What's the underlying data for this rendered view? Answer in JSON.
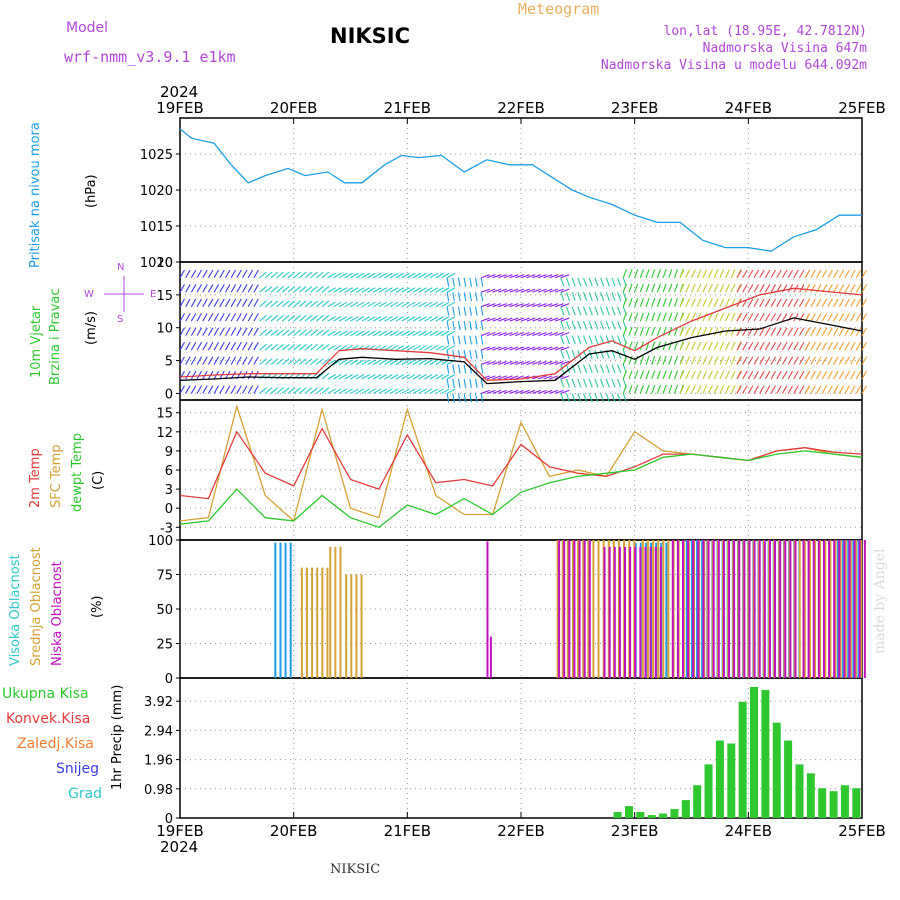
{
  "header": {
    "model_label": "Model",
    "model_name": "wrf-nmm_v3.9.1  e1km",
    "station": "NIKSIC",
    "product": "Meteogram",
    "coords": "lon,lat (18.95E, 42.7812N)",
    "elevation": "Nadmorska Visina 647m",
    "model_elevation": "Nadmorska Visina u modelu 644.092m",
    "year": "2024",
    "footer_station": "NIKSIC",
    "credit": "made by Angel"
  },
  "colors": {
    "pressure": "#1e9ee6",
    "t2m": "#e23c3c",
    "sfc": "#d4a235",
    "dewpt": "#2ec82e",
    "high_cloud": "#1e9ee6",
    "mid_cloud": "#d4a235",
    "low_cloud": "#c010c0",
    "precip_total": "#2ec82e",
    "precip_conv": "#e23c3c",
    "precip_frozen": "#f07f2e",
    "snow": "#3c3ce6",
    "grad": "#2ec8c8",
    "header_purple": "#b048d8",
    "meteogram_orange": "#e8b060"
  },
  "chart_data": [
    {
      "type": "line",
      "panel": "pressure",
      "ylabel": "(hPa)",
      "side_labels": [
        "Pritisak na nivou mora"
      ],
      "ylim": [
        1010,
        1030
      ],
      "yticks": [
        "1010",
        "1015",
        "1020",
        "1025"
      ],
      "x_day": [
        0,
        0.1,
        0.3,
        0.45,
        0.6,
        0.75,
        0.95,
        1.1,
        1.3,
        1.45,
        1.6,
        1.8,
        1.95,
        2.1,
        2.3,
        2.5,
        2.7,
        2.9,
        3.1,
        3.3,
        3.45,
        3.6,
        3.8,
        4.0,
        4.2,
        4.4,
        4.6,
        4.8,
        5.0,
        5.2,
        5.4,
        5.6,
        5.8,
        6.0
      ],
      "series": [
        {
          "values": [
            1028.5,
            1027.2,
            1026.5,
            1023.5,
            1021,
            1022,
            1023,
            1022,
            1022.5,
            1021,
            1021,
            1023.5,
            1024.8,
            1024.5,
            1024.8,
            1022.5,
            1024.2,
            1023.5,
            1023.5,
            1021.5,
            1020,
            1019,
            1018,
            1016.5,
            1015.5,
            1015.5,
            1013,
            1012,
            1012,
            1011.5,
            1013.5,
            1014.5,
            1016.5,
            1016.5
          ]
        }
      ]
    },
    {
      "type": "line",
      "panel": "wind",
      "ylabel": "(m/s)",
      "side_labels": [
        "10m Vjetar",
        "Brzina i Pravac"
      ],
      "compass": [
        "N",
        "W",
        "E",
        "S"
      ],
      "ylim": [
        -1,
        20
      ],
      "yticks": [
        "0",
        "5",
        "10",
        "15",
        "20"
      ],
      "x_day": [
        0,
        0.3,
        0.6,
        0.9,
        1.2,
        1.4,
        1.6,
        1.9,
        2.2,
        2.5,
        2.7,
        3.0,
        3.3,
        3.6,
        3.8,
        4.0,
        4.2,
        4.5,
        4.8,
        5.1,
        5.4,
        5.7,
        6.0
      ],
      "series": [
        {
          "name": "speed",
          "values": [
            2,
            2.2,
            2.5,
            2.4,
            2.4,
            5.2,
            5.5,
            5.2,
            5.3,
            4.8,
            1.5,
            1.8,
            2,
            6,
            6.5,
            5.2,
            7,
            8.5,
            9.5,
            9.8,
            11.5,
            10.5,
            9.5
          ]
        },
        {
          "name": "gust",
          "values": [
            2.5,
            2.8,
            3,
            3,
            3,
            6.5,
            6.8,
            6.5,
            6.2,
            5.5,
            2,
            2.2,
            3,
            7,
            8,
            6.5,
            8.5,
            11,
            13,
            15,
            16,
            15.5,
            15
          ]
        }
      ]
    },
    {
      "type": "line",
      "panel": "temperature",
      "ylabel": "(C)",
      "side_labels": [
        "2m Temp",
        "SFC Temp",
        "dewpt Temp"
      ],
      "ylim": [
        -5,
        17
      ],
      "yticks": [
        "-3",
        "0",
        "3",
        "6",
        "9",
        "12",
        "15"
      ],
      "x_day": [
        0,
        0.25,
        0.5,
        0.75,
        1.0,
        1.25,
        1.5,
        1.75,
        2.0,
        2.25,
        2.5,
        2.75,
        3.0,
        3.25,
        3.5,
        3.75,
        4.0,
        4.25,
        4.5,
        4.75,
        5.0,
        5.25,
        5.5,
        5.75,
        6.0
      ],
      "series": [
        {
          "name": "2m Temp",
          "values": [
            2,
            1.5,
            12,
            5.5,
            3.5,
            12.5,
            4.5,
            3,
            11.5,
            4,
            4.5,
            3.5,
            10,
            6.5,
            5.5,
            5,
            6.5,
            8.5,
            8.5,
            8,
            7.5,
            9,
            9.5,
            8.8,
            8.5
          ]
        },
        {
          "name": "SFC Temp",
          "values": [
            -2,
            -1.5,
            16,
            2,
            -2,
            15.5,
            0,
            -1.5,
            15.5,
            2,
            -1,
            -1,
            13.5,
            5,
            6,
            5,
            12,
            9,
            8.5,
            8,
            7.5,
            9,
            9.5,
            8.5,
            8
          ]
        },
        {
          "name": "dewpt Temp",
          "values": [
            -2.5,
            -2,
            3,
            -1.5,
            -2,
            2,
            -1.5,
            -3,
            0.5,
            -1,
            1.5,
            -1,
            2.5,
            4,
            5,
            5.5,
            6,
            8,
            8.5,
            8,
            7.5,
            8.5,
            9,
            8.5,
            8
          ]
        }
      ]
    },
    {
      "type": "bar",
      "panel": "clouds",
      "ylabel": "(%)",
      "side_labels": [
        "Visoka Oblacnost",
        "Srednja Oblacnost",
        "Niska Oblacnost"
      ],
      "ylim": [
        0,
        100
      ],
      "yticks": [
        "0",
        "25",
        "50",
        "75",
        "100"
      ],
      "high_runs": [
        [
          0.83,
          0.98,
          98
        ],
        [
          4.0,
          4.3,
          98
        ],
        [
          4.45,
          5.75,
          100
        ],
        [
          5.78,
          6.0,
          100
        ]
      ],
      "mid_runs": [
        [
          1.05,
          1.28,
          80
        ],
        [
          1.3,
          1.42,
          95
        ],
        [
          1.44,
          1.58,
          75
        ],
        [
          3.3,
          4.0,
          100
        ],
        [
          4.05,
          4.6,
          100
        ],
        [
          4.62,
          6.0,
          100
        ]
      ],
      "low_runs": [
        [
          2.67,
          2.68,
          99
        ],
        [
          2.7,
          2.72,
          30
        ],
        [
          3.3,
          3.6,
          100
        ],
        [
          3.7,
          4.2,
          95
        ],
        [
          4.3,
          5.4,
          100
        ],
        [
          5.45,
          6.0,
          100
        ]
      ]
    },
    {
      "type": "bar",
      "panel": "precipitation",
      "ylabel": "1hr Precip (mm)",
      "side_labels": [
        "Ukupna Kisa",
        "Konvek.Kisa",
        "Zaledj.Kisa",
        "Snijeg",
        "Grad"
      ],
      "ylim": [
        0,
        4.7
      ],
      "yticks": [
        "0",
        "0.98",
        "1.96",
        "2.94",
        "3.92"
      ],
      "x_day": [
        3.85,
        3.95,
        4.05,
        4.15,
        4.25,
        4.35,
        4.45,
        4.55,
        4.65,
        4.75,
        4.85,
        4.95,
        5.05,
        5.15,
        5.25,
        5.35,
        5.45,
        5.55,
        5.65,
        5.75,
        5.85,
        5.95
      ],
      "values": [
        0.2,
        0.4,
        0.2,
        0.1,
        0.15,
        0.3,
        0.6,
        1.1,
        1.8,
        2.6,
        2.5,
        3.9,
        4.4,
        4.3,
        3.2,
        2.6,
        1.8,
        1.5,
        1.0,
        0.9,
        1.1,
        1.0
      ]
    }
  ],
  "x_axis": {
    "ticks": [
      "19FEB",
      "20FEB",
      "21FEB",
      "22FEB",
      "23FEB",
      "24FEB",
      "25FEB"
    ]
  }
}
